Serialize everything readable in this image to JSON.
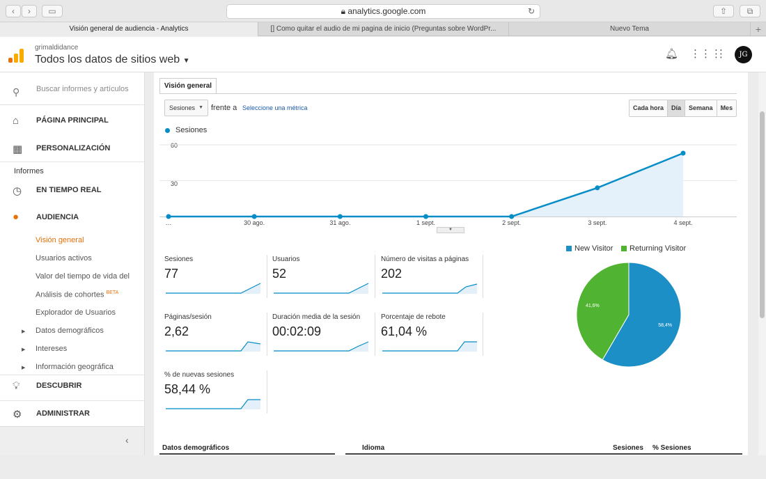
{
  "browser": {
    "url": "analytics.google.com",
    "tabs": [
      "Visión general de audiencia - Analytics",
      "[] Como quitar el audio de mi pagina de inicio (Preguntas sobre WordPr...",
      "Nuevo Tema"
    ]
  },
  "header": {
    "account": "grimaldidance",
    "property": "Todos los datos de sitios web",
    "avatar_initials": "JG"
  },
  "sidebar": {
    "search_placeholder": "Buscar informes y artículos",
    "home": "PÁGINA PRINCIPAL",
    "customization": "PERSONALIZACIÓN",
    "reports_label": "Informes",
    "realtime": "EN TIEMPO REAL",
    "audience": "AUDIENCIA",
    "audience_items": [
      "Visión general",
      "Usuarios activos",
      "Valor del tiempo de vida del",
      "Análisis de cohortes",
      "Explorador de Usuarios",
      "Datos demográficos",
      "Intereses",
      "Información geográfica"
    ],
    "beta": "BETA",
    "discover": "DESCUBRIR",
    "admin": "ADMINISTRAR"
  },
  "main": {
    "tab": "Visión general",
    "metric_select": "Sesiones",
    "versus": "frente a",
    "select_metric_link": "Seleccione una métrica",
    "periods": [
      "Cada hora",
      "Día",
      "Semana",
      "Mes"
    ],
    "active_period": "Día",
    "metrics": [
      {
        "label": "Sesiones",
        "value": "77"
      },
      {
        "label": "Usuarios",
        "value": "52"
      },
      {
        "label": "Número de visitas a páginas",
        "value": "202"
      },
      {
        "label": "Páginas/sesión",
        "value": "2,62"
      },
      {
        "label": "Duración media de la sesión",
        "value": "00:02:09"
      },
      {
        "label": "Porcentaje de rebote",
        "value": "61,04 %"
      },
      {
        "label": "% de nuevas sesiones",
        "value": "58,44 %"
      }
    ],
    "bottom_headers": [
      "Datos demográficos",
      "Idioma",
      "Sesiones",
      "% Sesiones"
    ]
  },
  "colors": {
    "line": "#058dc7",
    "new_visitor": "#1c8fc7",
    "returning_visitor": "#50b432",
    "accent": "#e8710a"
  },
  "chart_data": [
    {
      "type": "line",
      "series": [
        {
          "name": "Sesiones",
          "values": [
            0,
            0,
            0,
            0,
            0,
            24,
            53
          ]
        }
      ],
      "x": [
        "…",
        "30 ago.",
        "31 ago.",
        "1 sept.",
        "2 sept.",
        "3 sept.",
        "4 sept."
      ],
      "ylim": [
        0,
        60
      ],
      "yticks": [
        "30",
        "60"
      ],
      "legend": "top-left"
    },
    {
      "type": "pie",
      "categories": [
        "New Visitor",
        "Returning Visitor"
      ],
      "values": [
        58.4,
        41.6
      ],
      "labels": [
        "58,4%",
        "41,6%"
      ],
      "legend": "top"
    }
  ]
}
